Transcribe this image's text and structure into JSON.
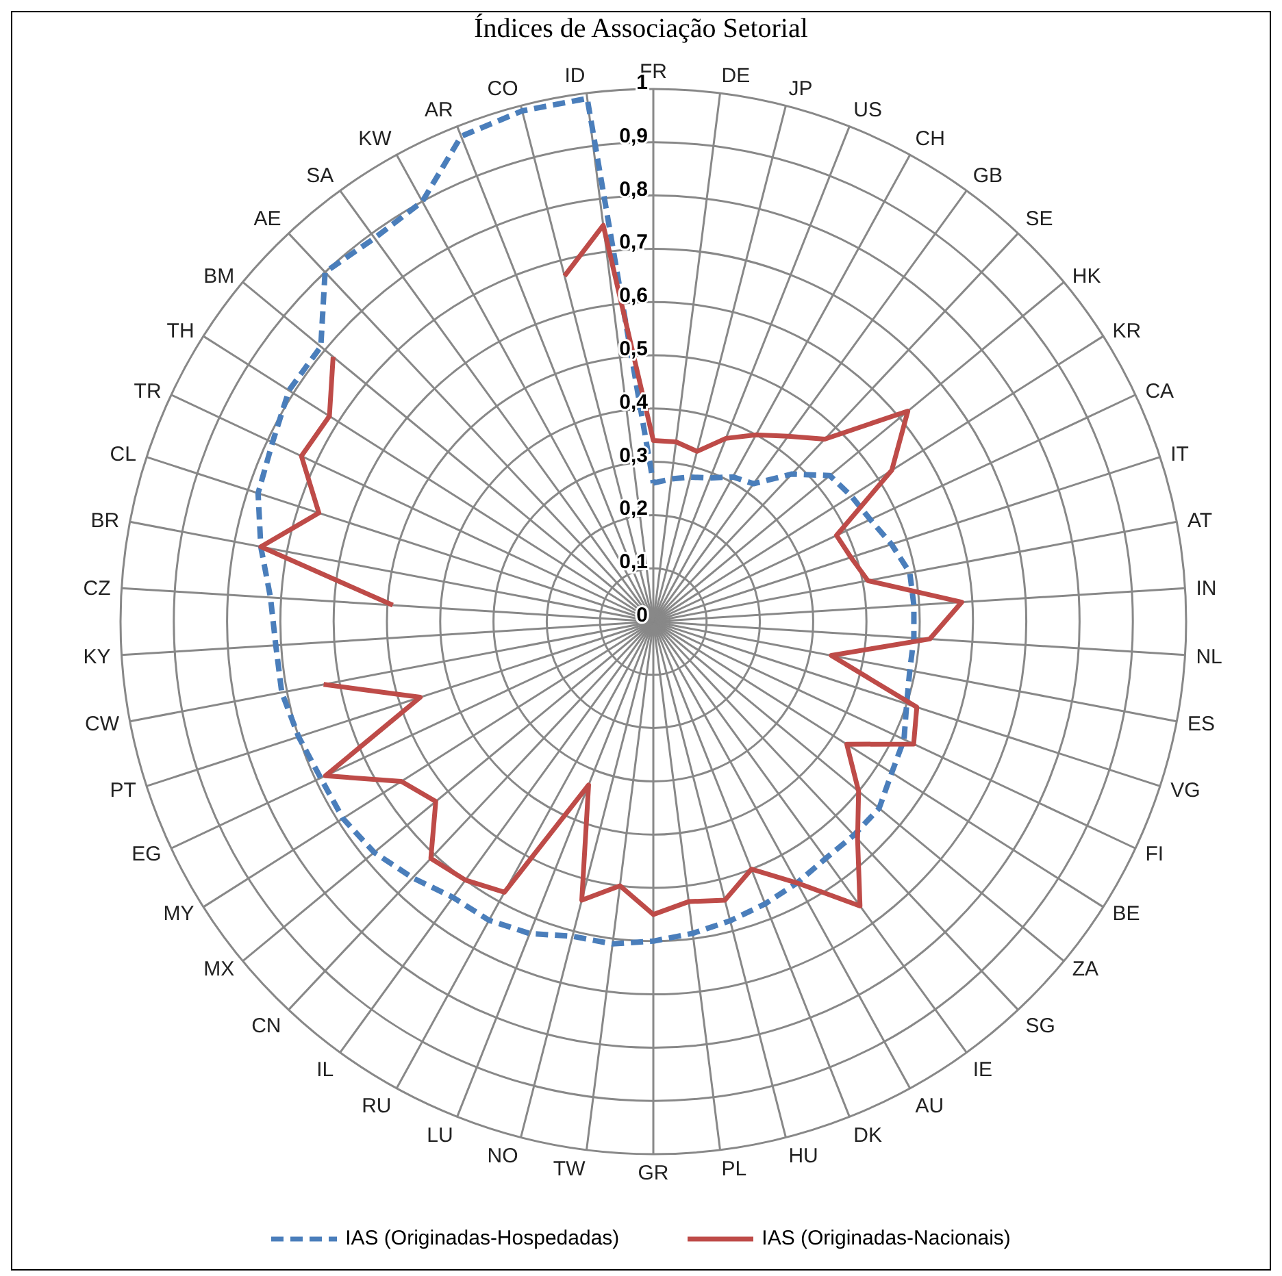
{
  "chart_data": {
    "type": "radar",
    "title": "Índices de Associação Setorial",
    "categories": [
      "FR",
      "DE",
      "JP",
      "US",
      "CH",
      "GB",
      "SE",
      "HK",
      "KR",
      "CA",
      "IT",
      "AT",
      "IN",
      "NL",
      "ES",
      "VG",
      "FI",
      "BE",
      "ZA",
      "SG",
      "IE",
      "AU",
      "DK",
      "HU",
      "PL",
      "GR",
      "TW",
      "NO",
      "LU",
      "RU",
      "IL",
      "CN",
      "MX",
      "MY",
      "EG",
      "PT",
      "CW",
      "KY",
      "CZ",
      "BR",
      "CL",
      "TR",
      "TH",
      "BM",
      "AE",
      "SA",
      "KW",
      "AR",
      "CO",
      "ID"
    ],
    "series": [
      {
        "name": "IAS (Originadas-Hospedadas)",
        "color": "#4a7ebb",
        "line_style": "dashed",
        "values": [
          0.26,
          0.27,
          0.28,
          0.29,
          0.31,
          0.32,
          0.38,
          0.43,
          0.44,
          0.45,
          0.47,
          0.49,
          0.49,
          0.49,
          0.49,
          0.5,
          0.52,
          0.53,
          0.55,
          0.55,
          0.55,
          0.56,
          0.57,
          0.58,
          0.59,
          0.6,
          0.61,
          0.61,
          0.63,
          0.64,
          0.64,
          0.66,
          0.68,
          0.69,
          0.69,
          0.7,
          0.71,
          0.71,
          0.72,
          0.75,
          0.78,
          0.79,
          0.81,
          0.81,
          0.9,
          0.89,
          0.9,
          0.98,
          0.99,
          0.99
        ]
      },
      {
        "name": "IAS (Originadas-Nacionais)",
        "color": "#be4b48",
        "line_style": "solid",
        "values": [
          0.34,
          0.34,
          0.33,
          0.37,
          0.4,
          0.43,
          0.47,
          0.62,
          0.53,
          0.38,
          0.39,
          0.41,
          0.58,
          0.52,
          0.34,
          0.52,
          0.54,
          0.43,
          0.5,
          0.56,
          0.66,
          0.56,
          0.5,
          0.54,
          0.53,
          0.55,
          0.5,
          0.54,
          0.33,
          0.58,
          0.6,
          0.61,
          0.53,
          0.56,
          0.68,
          0.46,
          0.63,
          null,
          0.49,
          0.75,
          0.66,
          0.73,
          0.72,
          0.78,
          null,
          null,
          null,
          null,
          0.67,
          0.75
        ]
      }
    ],
    "ylim": [
      0,
      1
    ],
    "yticks": [
      {
        "value": 0,
        "label": "0"
      },
      {
        "value": 0.1,
        "label": "0,1"
      },
      {
        "value": 0.2,
        "label": "0,2"
      },
      {
        "value": 0.3,
        "label": "0,3"
      },
      {
        "value": 0.4,
        "label": "0,4"
      },
      {
        "value": 0.5,
        "label": "0,5"
      },
      {
        "value": 0.6,
        "label": "0,6"
      },
      {
        "value": 0.7,
        "label": "0,7"
      },
      {
        "value": 0.8,
        "label": "0,8"
      },
      {
        "value": 0.9,
        "label": "0,9"
      },
      {
        "value": 1,
        "label": "1"
      }
    ],
    "grid": true,
    "legend": "bottom",
    "marker": "none"
  }
}
